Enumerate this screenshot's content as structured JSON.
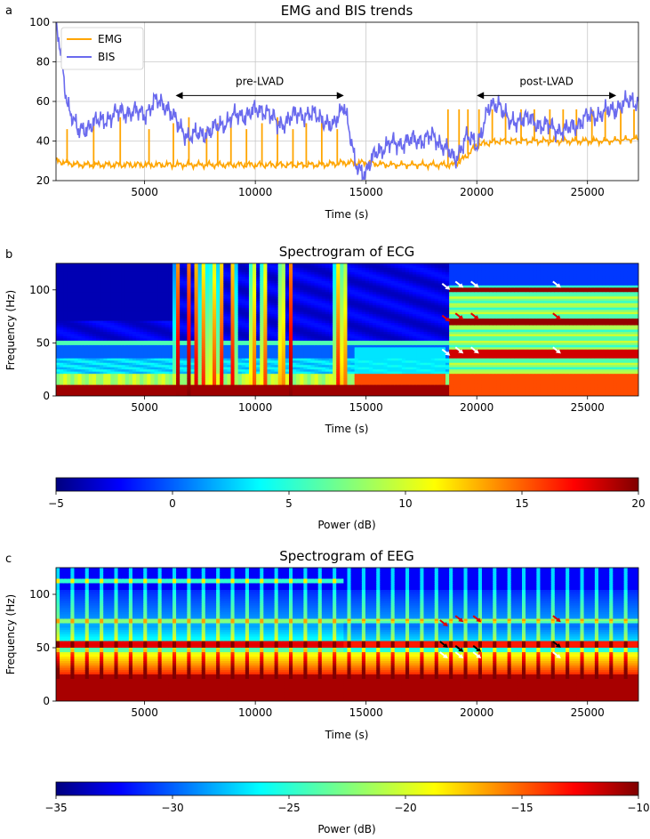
{
  "panel_labels": [
    "a",
    "b",
    "c"
  ],
  "chart_data": [
    {
      "type": "line",
      "title": "EMG and BIS trends",
      "xlabel": "Time (s)",
      "ylabel": "",
      "xlim": [
        1000,
        27300
      ],
      "ylim": [
        20,
        100
      ],
      "xticks": [
        5000,
        10000,
        15000,
        20000,
        25000
      ],
      "yticks": [
        20,
        40,
        60,
        80,
        100
      ],
      "grid": true,
      "legend": "top-left",
      "series": [
        {
          "name": "EMG",
          "color": "#ffa500",
          "x": [
            1000,
            2000,
            3000,
            4000,
            5000,
            6000,
            7000,
            8000,
            9000,
            10000,
            11000,
            12000,
            13000,
            14000,
            15000,
            16000,
            17000,
            18000,
            19000,
            19500,
            20000,
            21000,
            22000,
            23000,
            24000,
            25000,
            26000,
            27000
          ],
          "y": [
            30,
            28,
            28,
            28,
            28,
            28,
            28,
            28,
            28,
            28,
            28,
            28,
            28,
            29,
            29,
            28,
            28,
            28,
            28,
            32,
            38,
            40,
            40,
            40,
            40,
            40,
            40,
            41
          ]
        },
        {
          "name": "BIS",
          "color": "#6a6aee",
          "x": [
            1000,
            1500,
            2000,
            2500,
            3000,
            4000,
            5000,
            5500,
            6000,
            6500,
            7000,
            8000,
            9000,
            10000,
            10500,
            11000,
            12000,
            13000,
            13500,
            14000,
            14500,
            15000,
            15500,
            16000,
            17000,
            18000,
            18500,
            19000,
            19500,
            20000,
            20500,
            21000,
            21500,
            22000,
            23000,
            24000,
            25000,
            26000,
            26500,
            27000
          ],
          "y": [
            100,
            60,
            44,
            48,
            50,
            55,
            54,
            60,
            58,
            48,
            42,
            45,
            52,
            55,
            56,
            48,
            54,
            52,
            46,
            60,
            28,
            24,
            35,
            38,
            40,
            42,
            38,
            30,
            42,
            38,
            55,
            60,
            48,
            52,
            48,
            45,
            52,
            55,
            58,
            60
          ]
        }
      ],
      "annotations": [
        {
          "text": "pre-LVAD",
          "x_start": 6400,
          "x_end": 14000,
          "y": 63
        },
        {
          "text": "post-LVAD",
          "x_start": 20000,
          "x_end": 26300,
          "y": 63
        }
      ],
      "emg_spike_times": [
        1500,
        2700,
        3900,
        5200,
        6300,
        7000,
        7800,
        8300,
        8900,
        9600,
        10300,
        11000,
        11700,
        12300,
        13000,
        13700,
        18700,
        19200,
        19600,
        20100,
        20700,
        21300,
        22000,
        22600,
        23300,
        23900,
        24500,
        25200,
        25800,
        26500,
        27100
      ]
    },
    {
      "type": "heatmap",
      "title": "Spectrogram of ECG",
      "xlabel": "Time (s)",
      "ylabel": "Frequency (Hz)",
      "xlim": [
        1000,
        27300
      ],
      "ylim": [
        0,
        125
      ],
      "xticks": [
        5000,
        10000,
        15000,
        20000,
        25000
      ],
      "yticks": [
        0,
        50,
        100
      ],
      "colormap": "jet",
      "colorbar": {
        "label": "Power (dB)",
        "range": [
          -5,
          20
        ],
        "ticks": [
          -5,
          0,
          5,
          10,
          15,
          20
        ]
      },
      "arrows": [
        {
          "color": "white",
          "time": 18800,
          "freq": 100
        },
        {
          "color": "white",
          "time": 19400,
          "freq": 102
        },
        {
          "color": "white",
          "time": 20100,
          "freq": 102
        },
        {
          "color": "white",
          "time": 23800,
          "freq": 102
        },
        {
          "color": "red",
          "time": 18800,
          "freq": 70
        },
        {
          "color": "red",
          "time": 19400,
          "freq": 72
        },
        {
          "color": "red",
          "time": 20100,
          "freq": 72
        },
        {
          "color": "red",
          "time": 23800,
          "freq": 72
        },
        {
          "color": "white",
          "time": 18800,
          "freq": 38
        },
        {
          "color": "white",
          "time": 19400,
          "freq": 40
        },
        {
          "color": "white",
          "time": 20100,
          "freq": 40
        },
        {
          "color": "white",
          "time": 23800,
          "freq": 40
        }
      ]
    },
    {
      "type": "heatmap",
      "title": "Spectrogram of EEG",
      "xlabel": "Time (s)",
      "ylabel": "Frequency (Hz)",
      "xlim": [
        1000,
        27300
      ],
      "ylim": [
        0,
        125
      ],
      "xticks": [
        5000,
        10000,
        15000,
        20000,
        25000
      ],
      "yticks": [
        0,
        50,
        100
      ],
      "colormap": "jet",
      "colorbar": {
        "label": "Power (dB)",
        "range": [
          -35,
          -10
        ],
        "ticks": [
          -35,
          -30,
          -25,
          -20,
          -15,
          -10
        ]
      },
      "arrows": [
        {
          "color": "red",
          "time": 18700,
          "freq": 70
        },
        {
          "color": "red",
          "time": 19400,
          "freq": 74
        },
        {
          "color": "red",
          "time": 20200,
          "freq": 74
        },
        {
          "color": "red",
          "time": 23800,
          "freq": 74
        },
        {
          "color": "black",
          "time": 18700,
          "freq": 50
        },
        {
          "color": "black",
          "time": 19400,
          "freq": 46
        },
        {
          "color": "black",
          "time": 20200,
          "freq": 46
        },
        {
          "color": "black",
          "time": 23800,
          "freq": 50
        },
        {
          "color": "white",
          "time": 18700,
          "freq": 40
        },
        {
          "color": "white",
          "time": 19400,
          "freq": 40
        },
        {
          "color": "white",
          "time": 20200,
          "freq": 40
        },
        {
          "color": "white",
          "time": 23800,
          "freq": 40
        }
      ]
    }
  ]
}
